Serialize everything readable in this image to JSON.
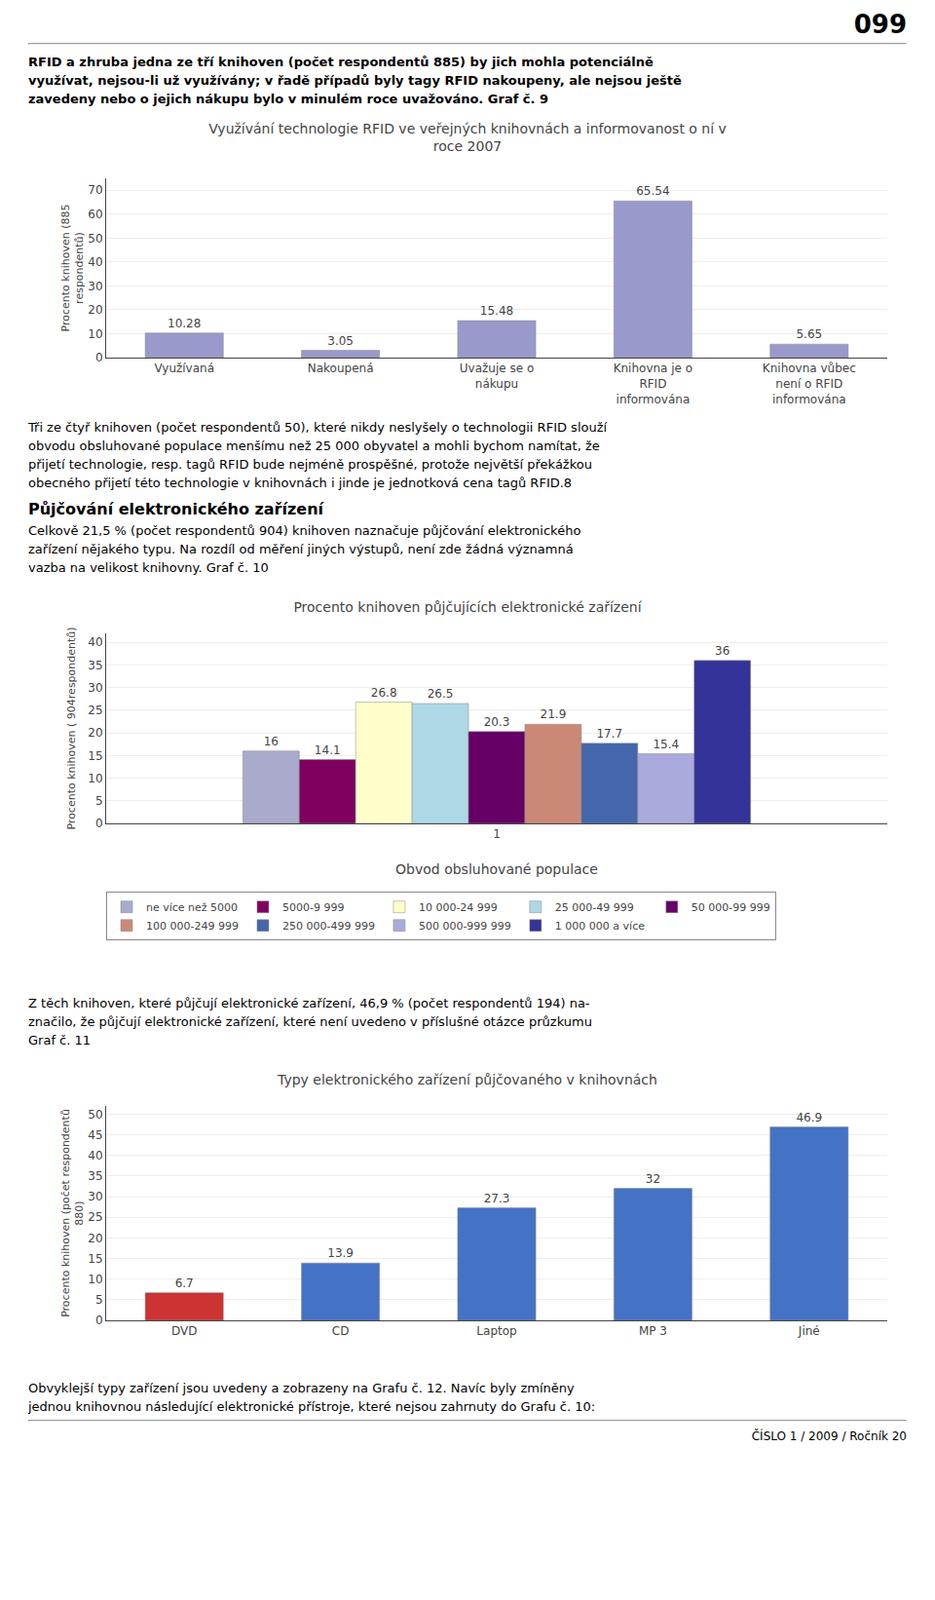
{
  "annotations": [
    "099",
    "RFID a zhruba jedna ze tří knihoven (počet respondentů 885) by jich mohla potenciálně",
    "využívat, nejsou-li už využívány; v řadě případů byly tagy RFID nakoupeny, ale nejsou ještě",
    "zavedeny nebo o jejich nákupu bylo v minulém roce uvažováno. Graf č. 9"
  ],
  "chart_data": [
    {
      "type": "bar",
      "title": "Využívání technologie RFID ve veřejných knihovnách a informovanost o ní v\nroce 2007",
      "categories": [
        "Využívaná",
        "Nakoupená",
        "Uvažuje se o\nnákupu",
        "Knihovna je o\nRFID\ninformována",
        "Knihovna vůbec\nnení o RFID\ninformována"
      ],
      "values": [
        10.28,
        3.05,
        15.48,
        65.54,
        5.65
      ],
      "color": "#9999cc",
      "ylabel": "Procento knihoven (885\nrespondentů)",
      "ylim": [
        0,
        75
      ],
      "yticks": [
        0,
        10,
        20,
        30,
        40,
        50,
        60,
        70
      ],
      "grid": true,
      "data_labels": true,
      "annotations": [
        "Tři ze čtyř knihoven (počet respondentů 50), které nikdy neslyšely o technologii RFID slouží",
        "obvodu obsluhované populace menšímu než 25 000 obyvatel a mohli bychom namítat, že",
        "přijetí technologie, resp. tagů RFID bude nejméně prospěšné, protože největší překážkou",
        "obecného přijetí této technologie v knihovnách i jinde je jednotková cena tagů RFID.8",
        "Půjčování elektronického zařízení",
        "Celkově 21,5 % (počet respondentů 904) knihoven naznačuje půjčování elektronického",
        "zařízení nějakého typu. Na rozdíl od měření jiných výstupů, není zde žádná významná",
        "vazba na velikost knihovny. Graf č. 10"
      ]
    },
    {
      "type": "bar",
      "title": "Procento knihoven půjčujících elektronické zařízení",
      "categories": [
        "1"
      ],
      "series": [
        {
          "name": "ne více než 5000",
          "color": "#aaaacc",
          "values": [
            16
          ]
        },
        {
          "name": "5000-9 999",
          "color": "#800060",
          "values": [
            14.1
          ]
        },
        {
          "name": "10 000-24 999",
          "color": "#ffffcc",
          "values": [
            26.8
          ]
        },
        {
          "name": "25 000-49 999",
          "color": "#add8e6",
          "values": [
            26.5
          ]
        },
        {
          "name": "50 000-99 999",
          "color": "#660066",
          "values": [
            20.3
          ]
        },
        {
          "name": "100 000-249 999",
          "color": "#cc8877",
          "values": [
            21.9
          ]
        },
        {
          "name": "250 000-499 999",
          "color": "#4466aa",
          "values": [
            17.7
          ]
        },
        {
          "name": "500 000-999 999",
          "color": "#aaaadd",
          "values": [
            15.4
          ]
        },
        {
          "name": "1 000 000 a více",
          "color": "#333399",
          "values": [
            36
          ]
        }
      ],
      "xlabel": "Obvod obsluhované populace",
      "ylabel": "Procento knihoven ( 904respondentů)",
      "ylim": [
        0,
        42
      ],
      "yticks": [
        0,
        5,
        10,
        15,
        20,
        25,
        30,
        35,
        40
      ],
      "grid": true,
      "legend": "bottom",
      "data_labels": true,
      "annotations": [
        "Z těch knihoven, které půjčují elektronické zařízení, 46,9 % (počet respondentů 194) na-",
        "značilo, že půjčují elektronické zařízení, které není uvedeno v příslušné otázce průzkumu",
        "Graf č. 11"
      ]
    },
    {
      "type": "bar",
      "title": "Typy elektronického zařízení půjčovaného v knihovnách",
      "categories": [
        "DVD",
        "CD",
        "Laptop",
        "MP 3",
        "Jiné"
      ],
      "values": [
        6.7,
        13.9,
        27.3,
        32,
        46.9
      ],
      "colors": [
        "#cc3333",
        "#4472c4",
        "#4472c4",
        "#4472c4",
        "#4472c4"
      ],
      "ylabel": "Procento knihoven (počet respondentů\n880)",
      "ylim": [
        0,
        52
      ],
      "yticks": [
        0,
        5,
        10,
        15,
        20,
        25,
        30,
        35,
        40,
        45,
        50
      ],
      "grid": true,
      "data_labels": true,
      "annotations": [
        "Obvyklejší typy zařízení jsou uvedeny a zobrazeny na Grafu č. 12. Navíc byly zmíněny",
        "jednou knihovnou následující elektronické přístroje, které nejsou zahrnuty do Grafu č. 10:",
        "ČÍSLO 1 / 2009 / Ročník 20"
      ]
    }
  ]
}
